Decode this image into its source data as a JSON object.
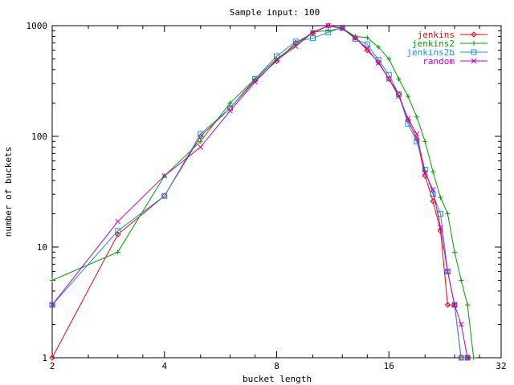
{
  "chart_data": {
    "type": "line",
    "title": "Sample input: 100",
    "xlabel": "bucket length",
    "ylabel": "number of buckets",
    "x_scale": "log2",
    "y_scale": "log10",
    "xlim": [
      2,
      32
    ],
    "ylim": [
      1,
      1000
    ],
    "x_ticks": [
      2,
      4,
      8,
      16,
      32
    ],
    "x_tick_labels": [
      "2",
      "4",
      "8",
      "16",
      "32"
    ],
    "y_ticks": [
      1,
      10,
      100,
      1000
    ],
    "y_tick_labels": [
      "1",
      "10",
      "100",
      "1000"
    ],
    "grid": false,
    "legend_position": "top-right",
    "series": [
      {
        "name": "jenkins",
        "color": "#ff0000",
        "marker": "diamond",
        "points": [
          [
            2,
            1
          ],
          [
            3,
            13
          ],
          [
            4,
            29
          ],
          [
            5,
            100
          ],
          [
            6,
            180
          ],
          [
            7,
            320
          ],
          [
            8,
            480
          ],
          [
            9,
            700
          ],
          [
            10,
            860
          ],
          [
            11,
            1000
          ],
          [
            12,
            950
          ],
          [
            13,
            780
          ],
          [
            14,
            600
          ],
          [
            15,
            470
          ],
          [
            16,
            330
          ],
          [
            17,
            240
          ],
          [
            18,
            140
          ],
          [
            19,
            95
          ],
          [
            20,
            44
          ],
          [
            21,
            26
          ],
          [
            22,
            14
          ],
          [
            23,
            3
          ],
          [
            24,
            3
          ],
          [
            25,
            1
          ],
          [
            26,
            1
          ]
        ]
      },
      {
        "name": "jenkins2",
        "color": "#00a000",
        "marker": "plus",
        "points": [
          [
            2,
            5
          ],
          [
            3,
            9
          ],
          [
            4,
            44
          ],
          [
            5,
            90
          ],
          [
            6,
            200
          ],
          [
            7,
            330
          ],
          [
            8,
            500
          ],
          [
            9,
            670
          ],
          [
            10,
            880
          ],
          [
            11,
            900
          ],
          [
            12,
            950
          ],
          [
            13,
            800
          ],
          [
            14,
            780
          ],
          [
            15,
            640
          ],
          [
            16,
            500
          ],
          [
            17,
            330
          ],
          [
            18,
            230
          ],
          [
            19,
            150
          ],
          [
            20,
            90
          ],
          [
            21,
            48
          ],
          [
            22,
            28
          ],
          [
            23,
            20
          ],
          [
            24,
            9
          ],
          [
            25,
            5
          ],
          [
            26,
            3
          ],
          [
            27,
            1
          ]
        ]
      },
      {
        "name": "jenkins2b",
        "color": "#1a8fd6",
        "marker": "square",
        "points": [
          [
            2,
            3
          ],
          [
            3,
            14
          ],
          [
            4,
            29
          ],
          [
            5,
            105
          ],
          [
            6,
            180
          ],
          [
            7,
            330
          ],
          [
            8,
            530
          ],
          [
            9,
            720
          ],
          [
            10,
            770
          ],
          [
            11,
            870
          ],
          [
            12,
            960
          ],
          [
            13,
            760
          ],
          [
            14,
            680
          ],
          [
            15,
            490
          ],
          [
            16,
            360
          ],
          [
            17,
            240
          ],
          [
            18,
            130
          ],
          [
            19,
            90
          ],
          [
            20,
            50
          ],
          [
            21,
            30
          ],
          [
            22,
            20
          ],
          [
            23,
            6
          ],
          [
            24,
            3
          ],
          [
            25,
            1
          ],
          [
            26,
            1
          ]
        ]
      },
      {
        "name": "random",
        "color": "#c000c0",
        "marker": "cross",
        "points": [
          [
            2,
            3
          ],
          [
            3,
            17
          ],
          [
            4,
            44
          ],
          [
            5,
            80
          ],
          [
            6,
            170
          ],
          [
            7,
            310
          ],
          [
            8,
            490
          ],
          [
            9,
            650
          ],
          [
            10,
            870
          ],
          [
            11,
            1000
          ],
          [
            12,
            940
          ],
          [
            13,
            770
          ],
          [
            14,
            620
          ],
          [
            15,
            460
          ],
          [
            16,
            330
          ],
          [
            17,
            230
          ],
          [
            18,
            145
          ],
          [
            19,
            105
          ],
          [
            20,
            47
          ],
          [
            21,
            33
          ],
          [
            22,
            15
          ],
          [
            23,
            6
          ],
          [
            24,
            3
          ],
          [
            25,
            2
          ],
          [
            26,
            1
          ]
        ]
      }
    ]
  }
}
